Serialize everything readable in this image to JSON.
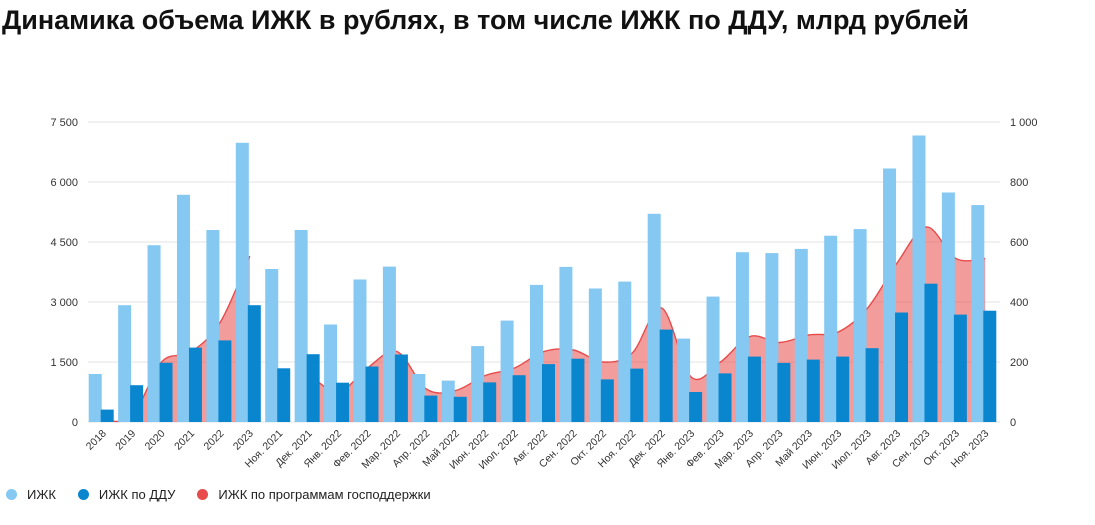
{
  "chart_data": {
    "type": "bar",
    "title": "Динамика объема ИЖК в рублях, в том числе ИЖК по ДДУ, млрд рублей",
    "categories": [
      "2018",
      "2019",
      "2020",
      "2021",
      "2022",
      "2023",
      "Ноя. 2021",
      "Дек. 2021",
      "Янв. 2022",
      "Фев. 2022",
      "Мар. 2022",
      "Апр. 2022",
      "Май 2022",
      "Июн. 2022",
      "Июл. 2022",
      "Авг. 2022",
      "Сен. 2022",
      "Окт. 2022",
      "Ноя. 2022",
      "Дек. 2022",
      "Янв. 2023",
      "Фев. 2023",
      "Мар. 2023",
      "Апр. 2023",
      "Май 2023",
      "Июн. 2023",
      "Июл. 2023",
      "Авг. 2023",
      "Сен. 2023",
      "Окт. 2023",
      "Ноя. 2023"
    ],
    "series": [
      {
        "name": "ИЖК",
        "axis": "left",
        "color": "#85c8f2",
        "values": [
          1200,
          2920,
          4420,
          5680,
          4800,
          6980,
          null,
          null,
          null,
          null,
          null,
          null,
          null,
          null,
          null,
          null,
          null,
          null,
          null,
          null,
          null,
          null,
          null,
          null,
          null,
          null,
          null,
          null,
          null,
          null,
          null
        ]
      },
      {
        "name": "ИЖК по ДДУ",
        "axis": "left",
        "color": "#0a86cf",
        "values": [
          310,
          920,
          1480,
          1860,
          2040,
          2920,
          null,
          null,
          null,
          null,
          null,
          null,
          null,
          null,
          null,
          null,
          null,
          null,
          null,
          null,
          null,
          null,
          null,
          null,
          null,
          null,
          null,
          null,
          null,
          null,
          null
        ]
      },
      {
        "name": "ИЖК по программам господдержки",
        "axis": "left",
        "color": "#e74b4b",
        "render": "area",
        "values": [
          50,
          150,
          1500,
          1750,
          2500,
          4150,
          null,
          null,
          null,
          null,
          null,
          null,
          null,
          null,
          null,
          null,
          null,
          null,
          null,
          null,
          null,
          null,
          null,
          null,
          null,
          null,
          null,
          null,
          null,
          null,
          null
        ]
      },
      {
        "name": "ИЖК",
        "axis": "right",
        "color": "#85c8f2",
        "values": [
          null,
          null,
          null,
          null,
          null,
          null,
          510,
          640,
          325,
          475,
          518,
          160,
          138,
          253,
          338,
          457,
          517,
          445,
          468,
          694,
          278,
          418,
          566,
          563,
          577,
          621,
          643,
          845,
          955,
          765,
          723
        ]
      },
      {
        "name": "ИЖК по ДДУ",
        "axis": "right",
        "color": "#0a86cf",
        "values": [
          null,
          null,
          null,
          null,
          null,
          null,
          179,
          226,
          131,
          185,
          225,
          88,
          84,
          132,
          156,
          193,
          211,
          142,
          178,
          308,
          100,
          162,
          218,
          197,
          208,
          218,
          246,
          365,
          461,
          358,
          371
        ]
      },
      {
        "name": "ИЖК по программам господдержки",
        "axis": "right",
        "color": "#e74b4b",
        "render": "area",
        "values": [
          null,
          null,
          null,
          null,
          null,
          null,
          null,
          160,
          100,
          180,
          235,
          110,
          105,
          155,
          180,
          235,
          240,
          200,
          230,
          380,
          150,
          200,
          285,
          265,
          290,
          300,
          380,
          530,
          650,
          545,
          545
        ]
      }
    ],
    "y_left": {
      "ylim": [
        0,
        7500
      ],
      "ticks": [
        0,
        1500,
        3000,
        4500,
        6000,
        7500
      ],
      "tick_labels": [
        "0",
        "1 500",
        "3 000",
        "4 500",
        "6 000",
        "7 500"
      ]
    },
    "y_right": {
      "ylim": [
        0,
        1000
      ],
      "ticks": [
        0,
        200,
        400,
        600,
        800,
        1000
      ],
      "tick_labels": [
        "0",
        "200",
        "400",
        "600",
        "800",
        "1 000"
      ]
    },
    "grid": true,
    "legend_position": "bottom-left",
    "legend": [
      {
        "label": "ИЖК",
        "color": "#85c8f2"
      },
      {
        "label": "ИЖК по ДДУ",
        "color": "#0a86cf"
      },
      {
        "label": "ИЖК по программам господдержки",
        "color": "#e74b4b"
      }
    ]
  }
}
